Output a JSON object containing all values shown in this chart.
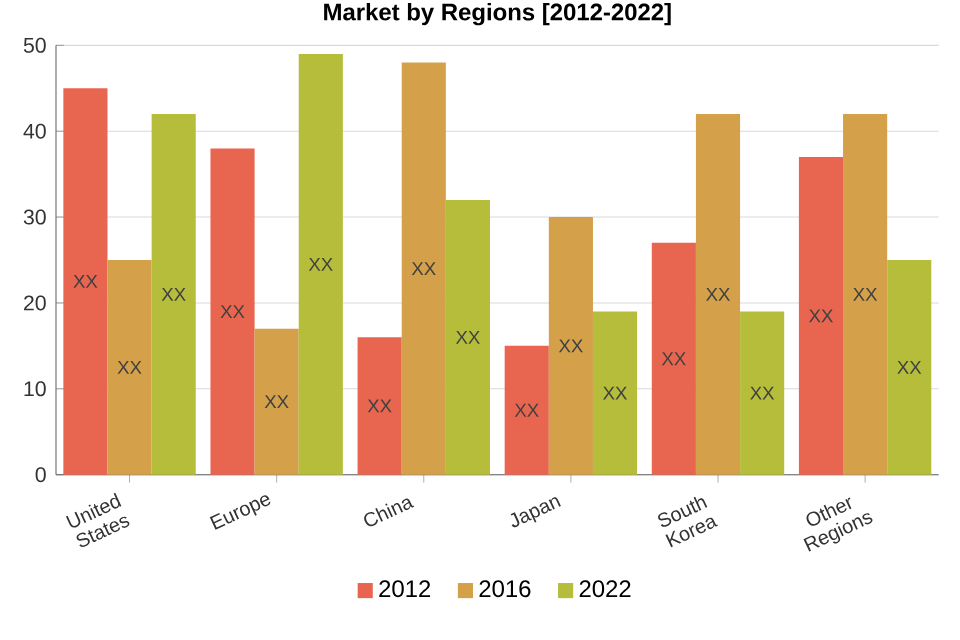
{
  "chart_data": {
    "type": "bar",
    "title": "Market by Regions [2012-2022]",
    "categories": [
      "United States",
      "Europe",
      "China",
      "Japan",
      "South Korea",
      "Other Regions"
    ],
    "series": [
      {
        "name": "2012",
        "color": "#e8654f",
        "values": [
          45,
          38,
          16,
          15,
          27,
          37
        ],
        "value_labels": [
          "XX",
          "XX",
          "XX",
          "XX",
          "XX",
          "XX"
        ]
      },
      {
        "name": "2016",
        "color": "#d4a04a",
        "values": [
          25,
          17,
          48,
          30,
          42,
          42
        ],
        "value_labels": [
          "XX",
          "XX",
          "XX",
          "XX",
          "XX",
          "XX"
        ]
      },
      {
        "name": "2022",
        "color": "#b5bd3a",
        "values": [
          42,
          49,
          32,
          19,
          19,
          25
        ],
        "value_labels": [
          "XX",
          "XX",
          "XX",
          "XX",
          "XX",
          "XX"
        ]
      }
    ],
    "ylim": [
      0,
      50
    ],
    "yticks": [
      0,
      10,
      20,
      30,
      40,
      50
    ],
    "grid": "y",
    "legend": "bottom"
  }
}
